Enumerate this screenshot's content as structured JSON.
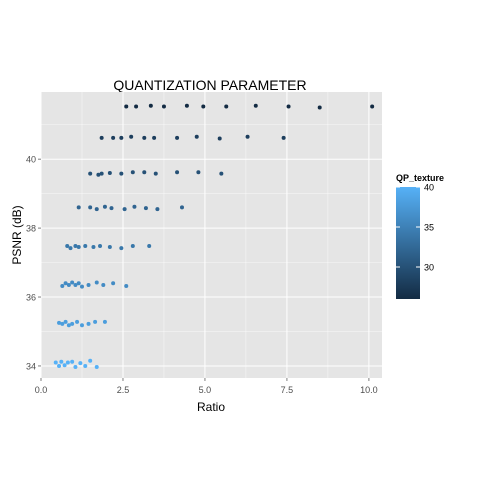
{
  "chart_data": {
    "type": "scatter",
    "title": "QUANTIZATION PARAMETER",
    "xlabel": "Ratio",
    "ylabel": "PSNR (dB)",
    "xlim": [
      0,
      10.4
    ],
    "ylim": [
      33.65,
      41.95
    ],
    "x_ticks": [
      0,
      2.5,
      5,
      7.5,
      10
    ],
    "x_tick_labels": [
      "0.0",
      "2.5",
      "5.0",
      "7.5",
      "10.0"
    ],
    "y_ticks": [
      34,
      36,
      38,
      40
    ],
    "y_tick_labels": [
      "34",
      "36",
      "38",
      "40"
    ],
    "grid": true,
    "legend": {
      "title": "QP_texture",
      "position": "right",
      "ticks": [
        30,
        35,
        40
      ],
      "tick_labels": [
        "30",
        "35",
        "40"
      ],
      "range": [
        26,
        40
      ],
      "color_low": "#132B43",
      "color_high": "#56B1F7"
    },
    "colors": {
      "panel_background": "#E5E5E5",
      "grid_line": "#FFFFFF",
      "axis_text": "#4D4D4D"
    },
    "points": [
      {
        "x": 0.45,
        "y": 34.1,
        "c": 40
      },
      {
        "x": 0.55,
        "y": 34.0,
        "c": 40
      },
      {
        "x": 0.62,
        "y": 34.12,
        "c": 40
      },
      {
        "x": 0.72,
        "y": 34.02,
        "c": 40
      },
      {
        "x": 0.82,
        "y": 34.1,
        "c": 40
      },
      {
        "x": 0.95,
        "y": 34.12,
        "c": 40
      },
      {
        "x": 1.05,
        "y": 33.97,
        "c": 40
      },
      {
        "x": 1.2,
        "y": 34.08,
        "c": 40
      },
      {
        "x": 1.35,
        "y": 34.0,
        "c": 40
      },
      {
        "x": 1.5,
        "y": 34.15,
        "c": 40
      },
      {
        "x": 1.7,
        "y": 33.97,
        "c": 40
      },
      {
        "x": 0.55,
        "y": 35.25,
        "c": 38
      },
      {
        "x": 0.65,
        "y": 35.22,
        "c": 38
      },
      {
        "x": 0.75,
        "y": 35.28,
        "c": 38
      },
      {
        "x": 0.85,
        "y": 35.18,
        "c": 38
      },
      {
        "x": 0.95,
        "y": 35.22,
        "c": 38
      },
      {
        "x": 1.1,
        "y": 35.28,
        "c": 38
      },
      {
        "x": 1.25,
        "y": 35.18,
        "c": 38
      },
      {
        "x": 1.45,
        "y": 35.22,
        "c": 38
      },
      {
        "x": 1.65,
        "y": 35.28,
        "c": 38
      },
      {
        "x": 1.95,
        "y": 35.28,
        "c": 38
      },
      {
        "x": 0.65,
        "y": 36.32,
        "c": 36
      },
      {
        "x": 0.75,
        "y": 36.4,
        "c": 36
      },
      {
        "x": 0.85,
        "y": 36.35,
        "c": 36
      },
      {
        "x": 0.95,
        "y": 36.42,
        "c": 36
      },
      {
        "x": 1.05,
        "y": 36.35,
        "c": 36
      },
      {
        "x": 1.15,
        "y": 36.4,
        "c": 36
      },
      {
        "x": 1.25,
        "y": 36.3,
        "c": 36
      },
      {
        "x": 1.45,
        "y": 36.35,
        "c": 36
      },
      {
        "x": 1.7,
        "y": 36.42,
        "c": 36
      },
      {
        "x": 1.9,
        "y": 36.35,
        "c": 36
      },
      {
        "x": 2.2,
        "y": 36.4,
        "c": 36
      },
      {
        "x": 2.6,
        "y": 36.32,
        "c": 36
      },
      {
        "x": 0.8,
        "y": 37.48,
        "c": 34
      },
      {
        "x": 0.9,
        "y": 37.42,
        "c": 34
      },
      {
        "x": 1.05,
        "y": 37.48,
        "c": 34
      },
      {
        "x": 1.15,
        "y": 37.45,
        "c": 34
      },
      {
        "x": 1.35,
        "y": 37.48,
        "c": 34
      },
      {
        "x": 1.6,
        "y": 37.45,
        "c": 34
      },
      {
        "x": 1.8,
        "y": 37.48,
        "c": 34
      },
      {
        "x": 2.1,
        "y": 37.45,
        "c": 34
      },
      {
        "x": 2.45,
        "y": 37.42,
        "c": 34
      },
      {
        "x": 2.8,
        "y": 37.48,
        "c": 34
      },
      {
        "x": 3.3,
        "y": 37.48,
        "c": 34
      },
      {
        "x": 1.15,
        "y": 38.6,
        "c": 32
      },
      {
        "x": 1.5,
        "y": 38.6,
        "c": 32
      },
      {
        "x": 1.7,
        "y": 38.55,
        "c": 32
      },
      {
        "x": 1.95,
        "y": 38.62,
        "c": 32
      },
      {
        "x": 2.15,
        "y": 38.58,
        "c": 32
      },
      {
        "x": 2.55,
        "y": 38.55,
        "c": 32
      },
      {
        "x": 2.85,
        "y": 38.62,
        "c": 32
      },
      {
        "x": 3.2,
        "y": 38.58,
        "c": 32
      },
      {
        "x": 3.55,
        "y": 38.55,
        "c": 32
      },
      {
        "x": 4.3,
        "y": 38.6,
        "c": 32
      },
      {
        "x": 1.5,
        "y": 39.58,
        "c": 30
      },
      {
        "x": 1.75,
        "y": 39.55,
        "c": 30
      },
      {
        "x": 1.85,
        "y": 39.58,
        "c": 30
      },
      {
        "x": 2.1,
        "y": 39.6,
        "c": 30
      },
      {
        "x": 2.45,
        "y": 39.58,
        "c": 30
      },
      {
        "x": 2.8,
        "y": 39.62,
        "c": 30
      },
      {
        "x": 3.15,
        "y": 39.62,
        "c": 30
      },
      {
        "x": 3.5,
        "y": 39.58,
        "c": 30
      },
      {
        "x": 4.15,
        "y": 39.62,
        "c": 30
      },
      {
        "x": 4.8,
        "y": 39.62,
        "c": 30
      },
      {
        "x": 5.5,
        "y": 39.58,
        "c": 30
      },
      {
        "x": 1.85,
        "y": 40.62,
        "c": 28
      },
      {
        "x": 2.2,
        "y": 40.62,
        "c": 28
      },
      {
        "x": 2.45,
        "y": 40.62,
        "c": 28
      },
      {
        "x": 2.75,
        "y": 40.65,
        "c": 28
      },
      {
        "x": 3.15,
        "y": 40.62,
        "c": 28
      },
      {
        "x": 3.45,
        "y": 40.62,
        "c": 28
      },
      {
        "x": 4.15,
        "y": 40.62,
        "c": 28
      },
      {
        "x": 4.75,
        "y": 40.65,
        "c": 28
      },
      {
        "x": 5.45,
        "y": 40.6,
        "c": 28
      },
      {
        "x": 6.3,
        "y": 40.65,
        "c": 28
      },
      {
        "x": 7.4,
        "y": 40.62,
        "c": 28
      },
      {
        "x": 2.6,
        "y": 41.53,
        "c": 26
      },
      {
        "x": 2.9,
        "y": 41.53,
        "c": 26
      },
      {
        "x": 3.35,
        "y": 41.55,
        "c": 26
      },
      {
        "x": 3.75,
        "y": 41.53,
        "c": 26
      },
      {
        "x": 4.45,
        "y": 41.55,
        "c": 26
      },
      {
        "x": 4.95,
        "y": 41.53,
        "c": 26
      },
      {
        "x": 5.65,
        "y": 41.53,
        "c": 26
      },
      {
        "x": 6.55,
        "y": 41.55,
        "c": 26
      },
      {
        "x": 7.55,
        "y": 41.53,
        "c": 26
      },
      {
        "x": 8.5,
        "y": 41.5,
        "c": 26
      },
      {
        "x": 10.1,
        "y": 41.53,
        "c": 26
      }
    ]
  }
}
